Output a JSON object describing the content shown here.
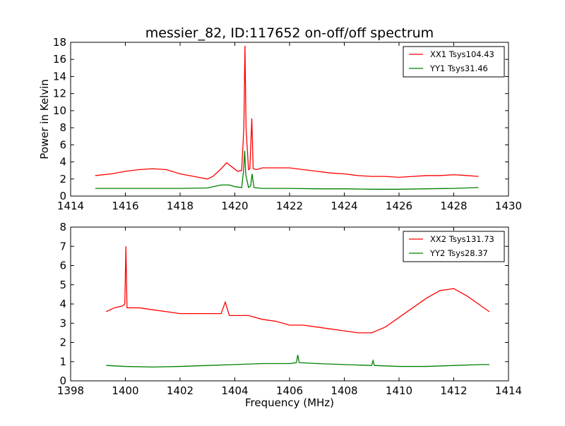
{
  "title": "messier_82, ID:117652 on-off/off spectrum",
  "chart_data": [
    {
      "type": "line",
      "ylabel": "Power in Kelvin",
      "xlabel": "",
      "xlim": [
        1414,
        1430
      ],
      "ylim": [
        0,
        18
      ],
      "xticks": [
        1414,
        1416,
        1418,
        1420,
        1422,
        1424,
        1426,
        1428,
        1430
      ],
      "yticks": [
        0,
        2,
        4,
        6,
        8,
        10,
        12,
        14,
        16,
        18
      ],
      "legend_position": "top-right",
      "grid": false,
      "series": [
        {
          "name": "XX1 Tsys104.43",
          "color": "#ff0000",
          "points": [
            [
              1414.9,
              2.4
            ],
            [
              1415.5,
              2.6
            ],
            [
              1416.0,
              2.9
            ],
            [
              1416.5,
              3.1
            ],
            [
              1417.0,
              3.2
            ],
            [
              1417.5,
              3.1
            ],
            [
              1418.0,
              2.6
            ],
            [
              1418.5,
              2.3
            ],
            [
              1419.0,
              2.0
            ],
            [
              1419.2,
              2.3
            ],
            [
              1419.5,
              3.2
            ],
            [
              1419.7,
              3.9
            ],
            [
              1419.9,
              3.4
            ],
            [
              1420.1,
              2.9
            ],
            [
              1420.25,
              3.0
            ],
            [
              1420.33,
              8.0
            ],
            [
              1420.37,
              17.6
            ],
            [
              1420.41,
              8.0
            ],
            [
              1420.5,
              3.1
            ],
            [
              1420.55,
              3.2
            ],
            [
              1420.62,
              9.1
            ],
            [
              1420.67,
              3.2
            ],
            [
              1420.8,
              3.1
            ],
            [
              1421.0,
              3.3
            ],
            [
              1421.5,
              3.3
            ],
            [
              1422.0,
              3.3
            ],
            [
              1422.5,
              3.1
            ],
            [
              1423.0,
              2.9
            ],
            [
              1423.5,
              2.7
            ],
            [
              1424.0,
              2.6
            ],
            [
              1424.5,
              2.4
            ],
            [
              1425.0,
              2.3
            ],
            [
              1425.5,
              2.3
            ],
            [
              1426.0,
              2.2
            ],
            [
              1426.5,
              2.3
            ],
            [
              1427.0,
              2.4
            ],
            [
              1427.5,
              2.4
            ],
            [
              1428.0,
              2.5
            ],
            [
              1428.5,
              2.4
            ],
            [
              1428.9,
              2.3
            ]
          ]
        },
        {
          "name": "YY1 Tsys31.46",
          "color": "#008000",
          "points": [
            [
              1414.9,
              0.9
            ],
            [
              1416.0,
              0.9
            ],
            [
              1417.0,
              0.9
            ],
            [
              1418.0,
              0.9
            ],
            [
              1419.0,
              0.95
            ],
            [
              1419.5,
              1.3
            ],
            [
              1419.8,
              1.3
            ],
            [
              1420.0,
              1.1
            ],
            [
              1420.25,
              1.0
            ],
            [
              1420.32,
              3.0
            ],
            [
              1420.36,
              5.3
            ],
            [
              1420.4,
              2.5
            ],
            [
              1420.5,
              1.0
            ],
            [
              1420.58,
              1.2
            ],
            [
              1420.63,
              2.6
            ],
            [
              1420.7,
              1.0
            ],
            [
              1421.0,
              0.9
            ],
            [
              1422.0,
              0.9
            ],
            [
              1423.0,
              0.85
            ],
            [
              1424.0,
              0.85
            ],
            [
              1425.0,
              0.8
            ],
            [
              1426.0,
              0.8
            ],
            [
              1427.0,
              0.85
            ],
            [
              1428.0,
              0.9
            ],
            [
              1428.9,
              1.0
            ]
          ]
        }
      ]
    },
    {
      "type": "line",
      "ylabel": "",
      "xlabel": "Frequency (MHz)",
      "xlim": [
        1398,
        1414
      ],
      "ylim": [
        0,
        8
      ],
      "xticks": [
        1398,
        1400,
        1402,
        1404,
        1406,
        1408,
        1410,
        1412,
        1414
      ],
      "yticks": [
        0,
        1,
        2,
        3,
        4,
        5,
        6,
        7,
        8
      ],
      "legend_position": "top-right",
      "grid": false,
      "series": [
        {
          "name": "XX2 Tsys131.73",
          "color": "#ff0000",
          "points": [
            [
              1399.3,
              3.6
            ],
            [
              1399.6,
              3.8
            ],
            [
              1399.9,
              3.9
            ],
            [
              1399.98,
              4.0
            ],
            [
              1400.02,
              7.0
            ],
            [
              1400.06,
              3.8
            ],
            [
              1400.5,
              3.8
            ],
            [
              1401.0,
              3.7
            ],
            [
              1401.5,
              3.6
            ],
            [
              1402.0,
              3.5
            ],
            [
              1402.5,
              3.5
            ],
            [
              1403.0,
              3.5
            ],
            [
              1403.5,
              3.5
            ],
            [
              1403.65,
              4.1
            ],
            [
              1403.8,
              3.4
            ],
            [
              1404.0,
              3.4
            ],
            [
              1404.5,
              3.4
            ],
            [
              1405.0,
              3.2
            ],
            [
              1405.5,
              3.1
            ],
            [
              1406.0,
              2.9
            ],
            [
              1406.5,
              2.9
            ],
            [
              1407.0,
              2.8
            ],
            [
              1407.5,
              2.7
            ],
            [
              1408.0,
              2.6
            ],
            [
              1408.5,
              2.5
            ],
            [
              1409.0,
              2.5
            ],
            [
              1409.5,
              2.8
            ],
            [
              1410.0,
              3.3
            ],
            [
              1410.5,
              3.8
            ],
            [
              1411.0,
              4.3
            ],
            [
              1411.5,
              4.7
            ],
            [
              1412.0,
              4.8
            ],
            [
              1412.5,
              4.4
            ],
            [
              1413.0,
              3.9
            ],
            [
              1413.3,
              3.6
            ]
          ]
        },
        {
          "name": "YY2 Tsys28.37",
          "color": "#008000",
          "points": [
            [
              1399.3,
              0.8
            ],
            [
              1400.0,
              0.75
            ],
            [
              1401.0,
              0.72
            ],
            [
              1402.0,
              0.75
            ],
            [
              1403.0,
              0.8
            ],
            [
              1404.0,
              0.85
            ],
            [
              1405.0,
              0.9
            ],
            [
              1406.0,
              0.9
            ],
            [
              1406.25,
              0.95
            ],
            [
              1406.3,
              1.35
            ],
            [
              1406.35,
              0.95
            ],
            [
              1407.0,
              0.9
            ],
            [
              1408.0,
              0.85
            ],
            [
              1409.0,
              0.8
            ],
            [
              1409.05,
              1.05
            ],
            [
              1409.1,
              0.8
            ],
            [
              1410.0,
              0.75
            ],
            [
              1411.0,
              0.75
            ],
            [
              1412.0,
              0.8
            ],
            [
              1413.0,
              0.85
            ],
            [
              1413.3,
              0.85
            ]
          ]
        }
      ]
    }
  ]
}
